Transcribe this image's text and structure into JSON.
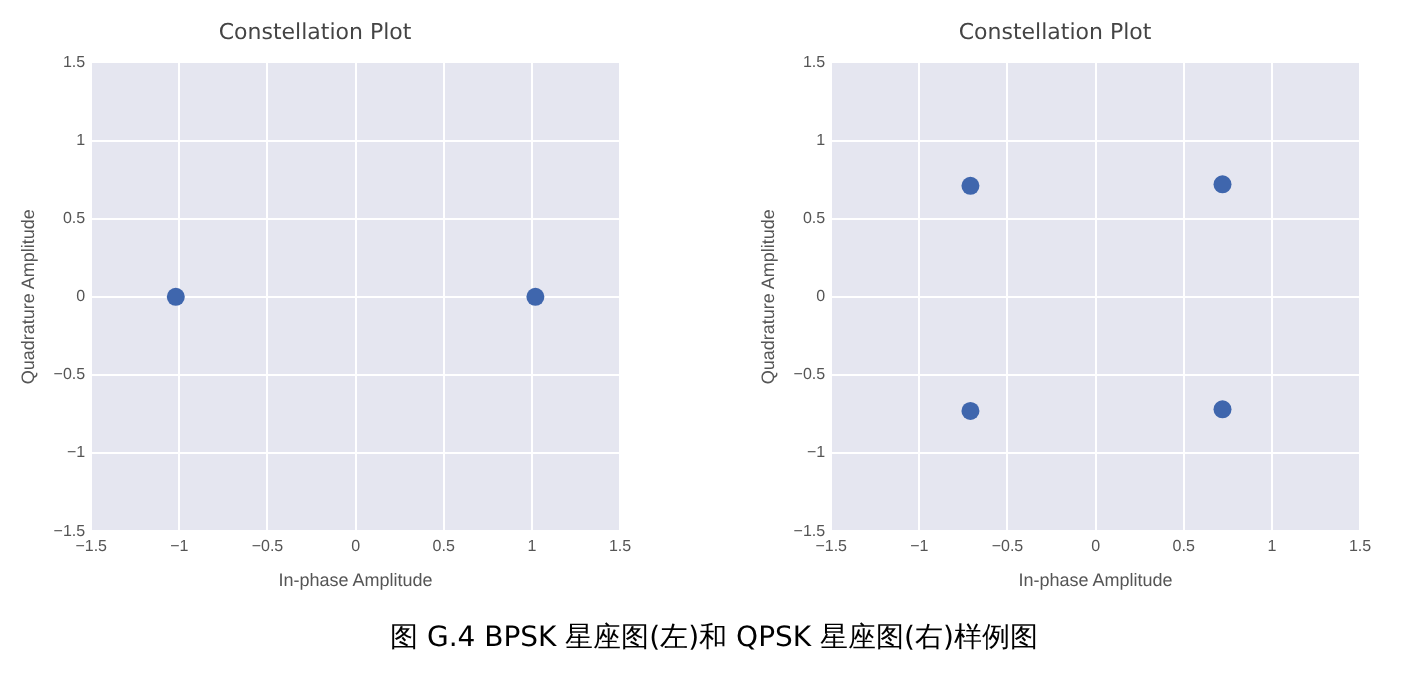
{
  "chart_data": [
    {
      "type": "scatter",
      "title": "Constellation Plot",
      "xlabel": "In-phase Amplitude",
      "ylabel": "Quadrature Amplitude",
      "marker": "circle",
      "grid": true,
      "legend": false,
      "xlim": [
        -1.5,
        1.5
      ],
      "ylim": [
        -1.5,
        1.5
      ],
      "xticks": [
        {
          "value": -1.5,
          "label": "−1.5"
        },
        {
          "value": -1,
          "label": "−1"
        },
        {
          "value": -0.5,
          "label": "−0.5"
        },
        0,
        0.5,
        1,
        1.5
      ],
      "yticks": [
        {
          "value": -1.5,
          "label": "−1.5"
        },
        {
          "value": -1,
          "label": "−1"
        },
        {
          "value": -0.5,
          "label": "−0.5"
        },
        0,
        0.5,
        1,
        1.5
      ],
      "series": [
        {
          "color": "#3f66ad",
          "x": [
            -1.02,
            1.02
          ],
          "values": [
            0,
            0
          ]
        }
      ],
      "annotations": [
        "图 G.4 BPSK 星座图(左)和 QPSK 星座图(右)样例图"
      ]
    },
    {
      "type": "scatter",
      "title": "Constellation Plot",
      "xlabel": "In-phase Amplitude",
      "ylabel": "Quadrature Amplitude",
      "marker": "circle",
      "grid": true,
      "legend": false,
      "xlim": [
        -1.5,
        1.5
      ],
      "ylim": [
        -1.5,
        1.5
      ],
      "xticks": [
        {
          "value": -1.5,
          "label": "−1.5"
        },
        {
          "value": -1,
          "label": "−1"
        },
        {
          "value": -0.5,
          "label": "−0.5"
        },
        0,
        0.5,
        1,
        1.5
      ],
      "yticks": [
        {
          "value": -1.5,
          "label": "−1.5"
        },
        {
          "value": -1,
          "label": "−1"
        },
        {
          "value": -0.5,
          "label": "−0.5"
        },
        0,
        0.5,
        1,
        1.5
      ],
      "series": [
        {
          "color": "#3f66ad",
          "x": [
            -0.71,
            0.72,
            -0.71,
            0.72
          ],
          "values": [
            0.71,
            0.72,
            -0.73,
            -0.72
          ]
        }
      ]
    }
  ]
}
